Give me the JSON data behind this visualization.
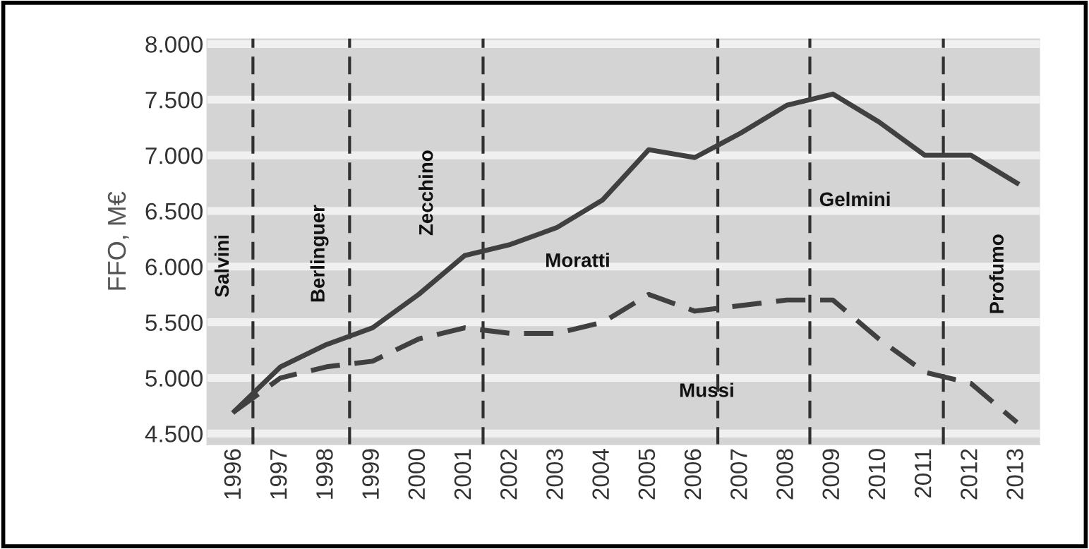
{
  "chart_data": {
    "type": "line",
    "ylabel": "FFO, M€",
    "x": [
      1996,
      1997,
      1998,
      1999,
      2000,
      2001,
      2002,
      2003,
      2004,
      2005,
      2006,
      2007,
      2008,
      2009,
      2010,
      2011,
      2012,
      2013
    ],
    "series": [
      {
        "color": "#404040",
        "line_style": "solid",
        "values": [
          4700,
          5100,
          5300,
          5450,
          5750,
          6100,
          6200,
          6350,
          6600,
          7050,
          6980,
          7200,
          7450,
          7550,
          7300,
          7000,
          7000,
          6750
        ]
      },
      {
        "color": "#404040",
        "line_style": "dashed",
        "values": [
          4700,
          5000,
          5100,
          5150,
          5350,
          5450,
          5400,
          5400,
          5500,
          5750,
          5600,
          5650,
          5700,
          5700,
          5350,
          5050,
          4950,
          4600
        ]
      }
    ],
    "xlim": [
      1995.4,
      2013.5
    ],
    "ylim": [
      4400,
      8050
    ],
    "xticks": [
      1996,
      1997,
      1998,
      1999,
      2000,
      2001,
      2002,
      2003,
      2004,
      2005,
      2006,
      2007,
      2008,
      2009,
      2010,
      2011,
      2012,
      2013
    ],
    "yticks": [
      {
        "value": 4500,
        "label": "4.500"
      },
      {
        "value": 5000,
        "label": "5.000"
      },
      {
        "value": 5500,
        "label": "5.500"
      },
      {
        "value": 6000,
        "label": "6.000"
      },
      {
        "value": 6500,
        "label": "6.500"
      },
      {
        "value": 7000,
        "label": "7.000"
      },
      {
        "value": 7500,
        "label": "7.500"
      },
      {
        "value": 8000,
        "label": "8.000"
      }
    ],
    "ref_lines": [
      {
        "axis": "x",
        "value": 1996.4,
        "color": "#303030",
        "line_style": "dashed"
      },
      {
        "axis": "x",
        "value": 1998.5,
        "color": "#303030",
        "line_style": "dashed"
      },
      {
        "axis": "x",
        "value": 2001.4,
        "color": "#303030",
        "line_style": "dashed"
      },
      {
        "axis": "x",
        "value": 2006.5,
        "color": "#303030",
        "line_style": "dashed"
      },
      {
        "axis": "x",
        "value": 2008.5,
        "color": "#303030",
        "line_style": "dashed"
      },
      {
        "axis": "x",
        "value": 2011.4,
        "color": "#303030",
        "line_style": "dashed"
      }
    ],
    "annotations": [
      "Salvini",
      "Berlinguer",
      "Zecchino",
      "Moratti",
      "Mussi",
      "Gelmini",
      "Profumo"
    ],
    "grid": "y"
  }
}
